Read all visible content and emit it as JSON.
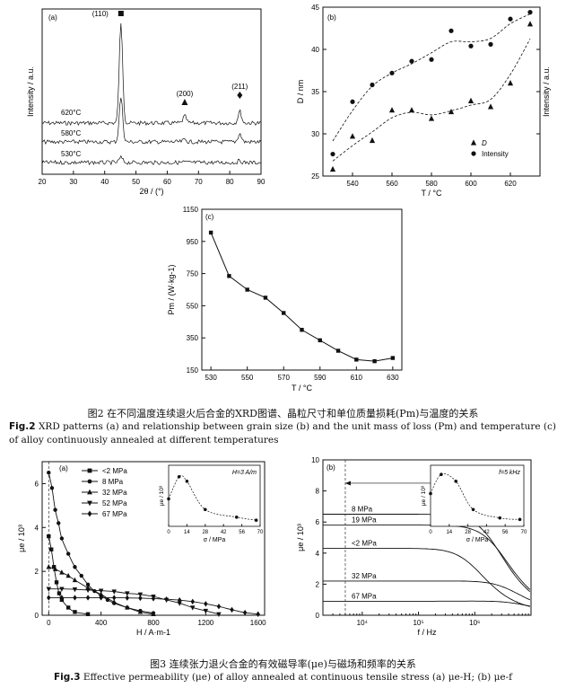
{
  "fig2_caption": {
    "cn": "图2 在不同温度连续退火后合金的XRD图谱、晶粒尺寸和单位质量损耗(Pm)与温度的关系",
    "en_label": "Fig.2",
    "en_text": "XRD patterns (a) and relationship between grain size (b) and the unit mass of loss (Pm) and temperature (c) of alloy continuously annealed at different temperatures"
  },
  "fig3_caption": {
    "cn": "图3 连续张力退火合金的有效磁导率(μe)与磁场和频率的关系",
    "en_label": "Fig.3",
    "en_text": "Effective permeability (μe) of alloy annealed at continuous tensile stress (a) μe-H; (b) μe-f"
  },
  "chart_data": [
    {
      "id": "fig2a",
      "type": "line",
      "panel": "(a)",
      "xlabel": "2θ / (°)",
      "ylabel": "Intensity / a.u.",
      "xlim": [
        20,
        90
      ],
      "xticks": [
        20,
        30,
        40,
        50,
        60,
        70,
        80,
        90
      ],
      "series": [
        {
          "name": "620°C",
          "peaks": [
            [
              45.2,
              1.0
            ],
            [
              65.6,
              0.07
            ],
            [
              83.2,
              0.12
            ]
          ]
        },
        {
          "name": "580°C",
          "peaks": [
            [
              45.2,
              0.55
            ],
            [
              65.6,
              0.03
            ],
            [
              83.2,
              0.1
            ]
          ]
        },
        {
          "name": "530°C",
          "peaks": [
            [
              45.2,
              0.14
            ],
            [
              65.6,
              0.02
            ],
            [
              83.2,
              0.05
            ]
          ]
        }
      ],
      "annotations": [
        {
          "text": "(110)",
          "x": 45.2,
          "marker": "square"
        },
        {
          "text": "(200)",
          "x": 65.6,
          "marker": "triangle"
        },
        {
          "text": "(211)",
          "x": 83.2,
          "marker": "diamond"
        }
      ]
    },
    {
      "id": "fig2b",
      "type": "scatter",
      "panel": "(b)",
      "xlabel": "T / °C",
      "ylabel": "D / nm",
      "ylabel_right": "Intensity / a.u.",
      "xlim": [
        525,
        635
      ],
      "ylim": [
        25,
        45
      ],
      "xticks": [
        540,
        560,
        580,
        600,
        620
      ],
      "yticks": [
        25,
        30,
        35,
        40,
        45
      ],
      "legend_position": "bottom-right",
      "series": [
        {
          "name": "D",
          "marker": "triangle",
          "x": [
            530,
            540,
            550,
            560,
            570,
            580,
            590,
            600,
            610,
            620,
            630
          ],
          "y": [
            25.8,
            29.7,
            29.2,
            32.8,
            32.8,
            31.8,
            32.6,
            33.9,
            33.2,
            36.0,
            43.0
          ]
        },
        {
          "name": "Intensity",
          "marker": "circle",
          "x": [
            530,
            540,
            550,
            560,
            570,
            580,
            590,
            600,
            610,
            620,
            630
          ],
          "y": [
            27.6,
            33.8,
            35.8,
            37.2,
            38.6,
            38.8,
            42.2,
            40.4,
            40.6,
            43.6,
            44.4
          ]
        }
      ]
    },
    {
      "id": "fig2c",
      "type": "line",
      "panel": "(c)",
      "xlabel": "T / °C",
      "ylabel": "Pm / (W·kg-1)",
      "xlim": [
        525,
        635
      ],
      "ylim": [
        150,
        1150
      ],
      "xticks": [
        530,
        550,
        570,
        590,
        610,
        630
      ],
      "yticks": [
        150,
        350,
        550,
        750,
        950,
        1150
      ],
      "series": [
        {
          "name": "",
          "marker": "square",
          "x": [
            530,
            540,
            550,
            560,
            570,
            580,
            590,
            600,
            610,
            620,
            630
          ],
          "y": [
            1005,
            735,
            650,
            600,
            505,
            400,
            335,
            270,
            215,
            205,
            225
          ]
        }
      ]
    },
    {
      "id": "fig3a",
      "type": "line",
      "panel": "(a)",
      "xlabel": "H / A·m-1",
      "ylabel": "μe / 10³",
      "xlim": [
        -50,
        1650
      ],
      "ylim": [
        0,
        7
      ],
      "xticks": [
        0,
        400,
        800,
        1200,
        1600
      ],
      "yticks": [
        0,
        2,
        4,
        6
      ],
      "legend_position": "top-center",
      "series": [
        {
          "name": "<2 MPa",
          "marker": "square",
          "x": [
            0,
            20,
            40,
            60,
            80,
            100,
            150,
            200,
            300
          ],
          "y": [
            3.6,
            3.0,
            2.2,
            1.5,
            1.0,
            0.7,
            0.35,
            0.15,
            0.05
          ]
        },
        {
          "name": "8 MPa",
          "marker": "circle",
          "x": [
            0,
            25,
            50,
            75,
            100,
            150,
            200,
            250,
            300,
            350,
            400,
            450,
            500,
            600,
            700,
            800
          ],
          "y": [
            6.5,
            5.8,
            4.8,
            4.2,
            3.5,
            2.8,
            2.2,
            1.8,
            1.4,
            1.1,
            0.9,
            0.7,
            0.55,
            0.35,
            0.2,
            0.1
          ]
        },
        {
          "name": "32 MPa",
          "marker": "triangle",
          "x": [
            0,
            50,
            100,
            150,
            200,
            300,
            400,
            500,
            600,
            700,
            800
          ],
          "y": [
            2.2,
            2.1,
            1.95,
            1.8,
            1.6,
            1.25,
            0.95,
            0.6,
            0.35,
            0.15,
            0.05
          ]
        },
        {
          "name": "52 MPa",
          "marker": "triangle-down",
          "x": [
            0,
            100,
            200,
            300,
            400,
            500,
            600,
            700,
            800,
            900,
            1000,
            1100,
            1200,
            1300
          ],
          "y": [
            1.2,
            1.2,
            1.18,
            1.15,
            1.12,
            1.08,
            1.0,
            0.95,
            0.85,
            0.7,
            0.55,
            0.35,
            0.2,
            0.05
          ]
        },
        {
          "name": "67 MPa",
          "marker": "diamond",
          "x": [
            0,
            100,
            200,
            300,
            400,
            500,
            600,
            700,
            800,
            900,
            1000,
            1100,
            1200,
            1300,
            1400,
            1500,
            1600
          ],
          "y": [
            0.8,
            0.8,
            0.8,
            0.8,
            0.8,
            0.8,
            0.79,
            0.78,
            0.76,
            0.73,
            0.69,
            0.62,
            0.52,
            0.4,
            0.25,
            0.12,
            0.05
          ]
        }
      ],
      "inset": {
        "label": "H=3 A/m",
        "xlabel": "σ / MPa",
        "ylabel": "μe / 10³",
        "xticks": [
          0,
          14,
          28,
          42,
          56,
          70
        ],
        "ylim": [
          0,
          8
        ],
        "x": [
          0,
          8,
          14,
          28,
          52,
          67
        ],
        "y": [
          3.6,
          6.5,
          5.9,
          2.2,
          1.2,
          0.8
        ]
      }
    },
    {
      "id": "fig3b",
      "type": "line",
      "panel": "(b)",
      "xlabel": "f / Hz",
      "ylabel": "μe / 10³",
      "xscale": "log",
      "xlim": [
        2000,
        10000000
      ],
      "ylim": [
        0,
        10
      ],
      "xticks": [
        "10⁴",
        "10⁵",
        "10⁶"
      ],
      "yticks": [
        0,
        2,
        4,
        6,
        8,
        10
      ],
      "series": [
        {
          "name": "8 MPa",
          "plateau": 6.5,
          "corner": 2000000
        },
        {
          "name": "19 MPa",
          "plateau": 5.8,
          "corner": 2500000
        },
        {
          "name": "<2 MPa",
          "plateau": 4.3,
          "corner": 900000
        },
        {
          "name": "32 MPa",
          "plateau": 2.2,
          "corner": 4000000
        },
        {
          "name": "67 MPa",
          "plateau": 0.9,
          "corner": 6000000
        }
      ],
      "inset": {
        "label": "f=5 kHz",
        "xlabel": "σ / MPa",
        "ylabel": "μe / 10³",
        "xticks": [
          0,
          14,
          28,
          42,
          56,
          70
        ],
        "ylim": [
          0,
          8
        ],
        "x": [
          0,
          8,
          19,
          32,
          52,
          67
        ],
        "y": [
          4.3,
          6.8,
          5.9,
          2.2,
          1.1,
          0.9
        ]
      }
    }
  ]
}
